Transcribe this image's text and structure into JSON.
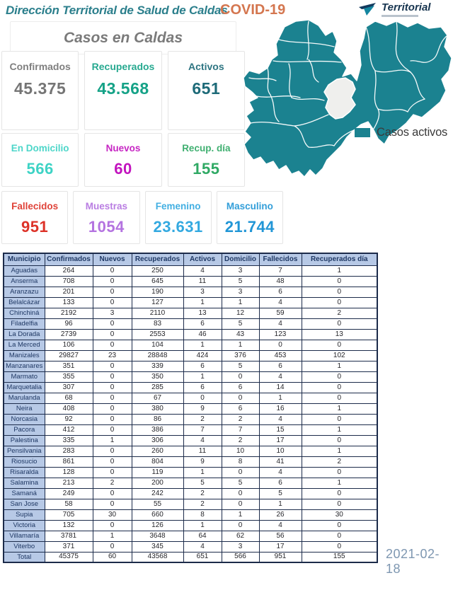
{
  "header": {
    "title": "Dirección Territorial de Salud de Caldas",
    "covid_label": "COVID-19",
    "logo_text": "Territorial",
    "subtitle": "Casos en Caldas"
  },
  "colors": {
    "title": "#2b7f8c",
    "covid": "#d4764f",
    "map_fill": "#1b8290",
    "map_inactive": "#efefed",
    "table_header_bg": "#b7c9e6",
    "table_header_text": "#1f3864",
    "table_border": "#1c2b4a",
    "date": "#7e97b1"
  },
  "cards": [
    {
      "id": "confirmados",
      "label": "Confirmados",
      "value": "45.375",
      "color": "#757575"
    },
    {
      "id": "recuperados",
      "label": "Recuperados",
      "value": "43.568",
      "color": "#15a287"
    },
    {
      "id": "activos",
      "label": "Activos",
      "value": "651",
      "color": "#1d6a78"
    },
    {
      "id": "en-domicilio",
      "label": "En Domicilio",
      "value": "566",
      "color": "#3ed3c5"
    },
    {
      "id": "nuevos",
      "label": "Nuevos",
      "value": "60",
      "color": "#c213be"
    },
    {
      "id": "recup-dia",
      "label": "Recup. día",
      "value": "155",
      "color": "#2fa964"
    },
    {
      "id": "fallecidos",
      "label": "Fallecidos",
      "value": "951",
      "color": "#dd3228"
    },
    {
      "id": "muestras",
      "label": "Muestras",
      "value": "1054",
      "color": "#b473e0"
    },
    {
      "id": "femenino",
      "label": "Femenino",
      "value": "23.631",
      "color": "#33a9e0"
    },
    {
      "id": "masculino",
      "label": "Masculino",
      "value": "21.744",
      "color": "#2196d6"
    }
  ],
  "map": {
    "legend_label": "Casos activos"
  },
  "table": {
    "columns": [
      "Municipio",
      "Confirmados",
      "Nuevos",
      "Recuperados",
      "Activos",
      "Domicilio",
      "Fallecidos",
      "Recuperados día"
    ],
    "rows": [
      [
        "Aguadas",
        "264",
        "0",
        "250",
        "4",
        "3",
        "7",
        "1"
      ],
      [
        "Anserma",
        "708",
        "0",
        "645",
        "11",
        "5",
        "48",
        "0"
      ],
      [
        "Aranzazu",
        "201",
        "0",
        "190",
        "3",
        "3",
        "6",
        "0"
      ],
      [
        "Belalcázar",
        "133",
        "0",
        "127",
        "1",
        "1",
        "4",
        "0"
      ],
      [
        "Chinchiná",
        "2192",
        "3",
        "2110",
        "13",
        "12",
        "59",
        "2"
      ],
      [
        "Filadelfia",
        "96",
        "0",
        "83",
        "6",
        "5",
        "4",
        "0"
      ],
      [
        "La Dorada",
        "2739",
        "0",
        "2553",
        "46",
        "43",
        "123",
        "13"
      ],
      [
        "La Merced",
        "106",
        "0",
        "104",
        "1",
        "1",
        "0",
        "0"
      ],
      [
        "Manizales",
        "29827",
        "23",
        "28848",
        "424",
        "376",
        "453",
        "102"
      ],
      [
        "Manzanares",
        "351",
        "0",
        "339",
        "6",
        "5",
        "6",
        "1"
      ],
      [
        "Marmato",
        "355",
        "0",
        "350",
        "1",
        "0",
        "4",
        "0"
      ],
      [
        "Marquetalia",
        "307",
        "0",
        "285",
        "6",
        "6",
        "14",
        "0"
      ],
      [
        "Marulanda",
        "68",
        "0",
        "67",
        "0",
        "0",
        "1",
        "0"
      ],
      [
        "Neira",
        "408",
        "0",
        "380",
        "9",
        "6",
        "16",
        "1"
      ],
      [
        "Norcasia",
        "92",
        "0",
        "86",
        "2",
        "2",
        "4",
        "0"
      ],
      [
        "Pacora",
        "412",
        "0",
        "386",
        "7",
        "7",
        "15",
        "1"
      ],
      [
        "Palestina",
        "335",
        "1",
        "306",
        "4",
        "2",
        "17",
        "0"
      ],
      [
        "Pensilvania",
        "283",
        "0",
        "260",
        "11",
        "10",
        "10",
        "1"
      ],
      [
        "Riosucio",
        "861",
        "0",
        "804",
        "9",
        "8",
        "41",
        "2"
      ],
      [
        "Risaralda",
        "128",
        "0",
        "119",
        "1",
        "0",
        "4",
        "0"
      ],
      [
        "Salamina",
        "213",
        "2",
        "200",
        "5",
        "5",
        "6",
        "1"
      ],
      [
        "Samaná",
        "249",
        "0",
        "242",
        "2",
        "0",
        "5",
        "0"
      ],
      [
        "San Jose",
        "58",
        "0",
        "55",
        "2",
        "0",
        "1",
        "0"
      ],
      [
        "Supia",
        "705",
        "30",
        "660",
        "8",
        "1",
        "26",
        "30"
      ],
      [
        "Victoria",
        "132",
        "0",
        "126",
        "1",
        "0",
        "4",
        "0"
      ],
      [
        "Villamaría",
        "3781",
        "1",
        "3648",
        "64",
        "62",
        "56",
        "0"
      ],
      [
        "Viterbo",
        "371",
        "0",
        "345",
        "4",
        "3",
        "17",
        "0"
      ],
      [
        "Total",
        "45375",
        "60",
        "43568",
        "651",
        "566",
        "951",
        "155"
      ]
    ]
  },
  "footer": {
    "date": "2021-02-18"
  }
}
